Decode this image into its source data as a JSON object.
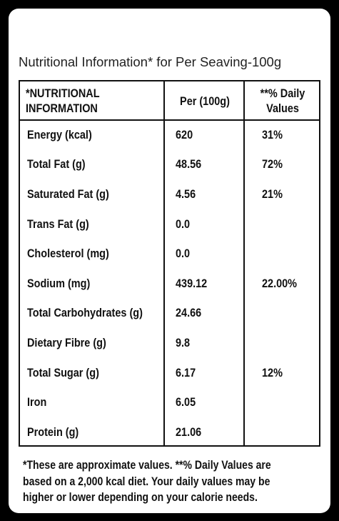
{
  "title": "Nutritional Information* for Per Seaving-100g",
  "table": {
    "header": [
      "*NUTRITIONAL INFORMATION",
      "Per (100g)",
      "**% Daily Values"
    ],
    "rows": [
      {
        "nutrient": "Energy (kcal)",
        "per_100g": "620",
        "daily_value": "31%"
      },
      {
        "nutrient": "Total Fat (g)",
        "per_100g": "48.56",
        "daily_value": "72%"
      },
      {
        "nutrient": "Saturated Fat (g)",
        "per_100g": "4.56",
        "daily_value": "21%"
      },
      {
        "nutrient": "Trans Fat (g)",
        "per_100g": "0.0"
      },
      {
        "nutrient": "Cholesterol (mg)",
        "per_100g": "0.0"
      },
      {
        "nutrient": "Sodium (mg)",
        "per_100g": "439.12",
        "daily_value": "22.00%"
      },
      {
        "nutrient": "Total Carbohydrates (g)",
        "per_100g": "24.66"
      },
      {
        "nutrient": "Dietary Fibre (g)",
        "per_100g": "9.8"
      },
      {
        "nutrient": "Total Sugar (g)",
        "per_100g": "6.17",
        "daily_value": "12%"
      },
      {
        "nutrient": "Iron",
        "per_100g": "6.05"
      },
      {
        "nutrient": "Protein (g)",
        "per_100g": "21.06"
      }
    ]
  },
  "footnote": [
    "*These are approximate values. **% Daily Values are",
    "based on a 2,000 kcal diet. Your daily values may be",
    "higher or lower depending on your calorie needs."
  ]
}
